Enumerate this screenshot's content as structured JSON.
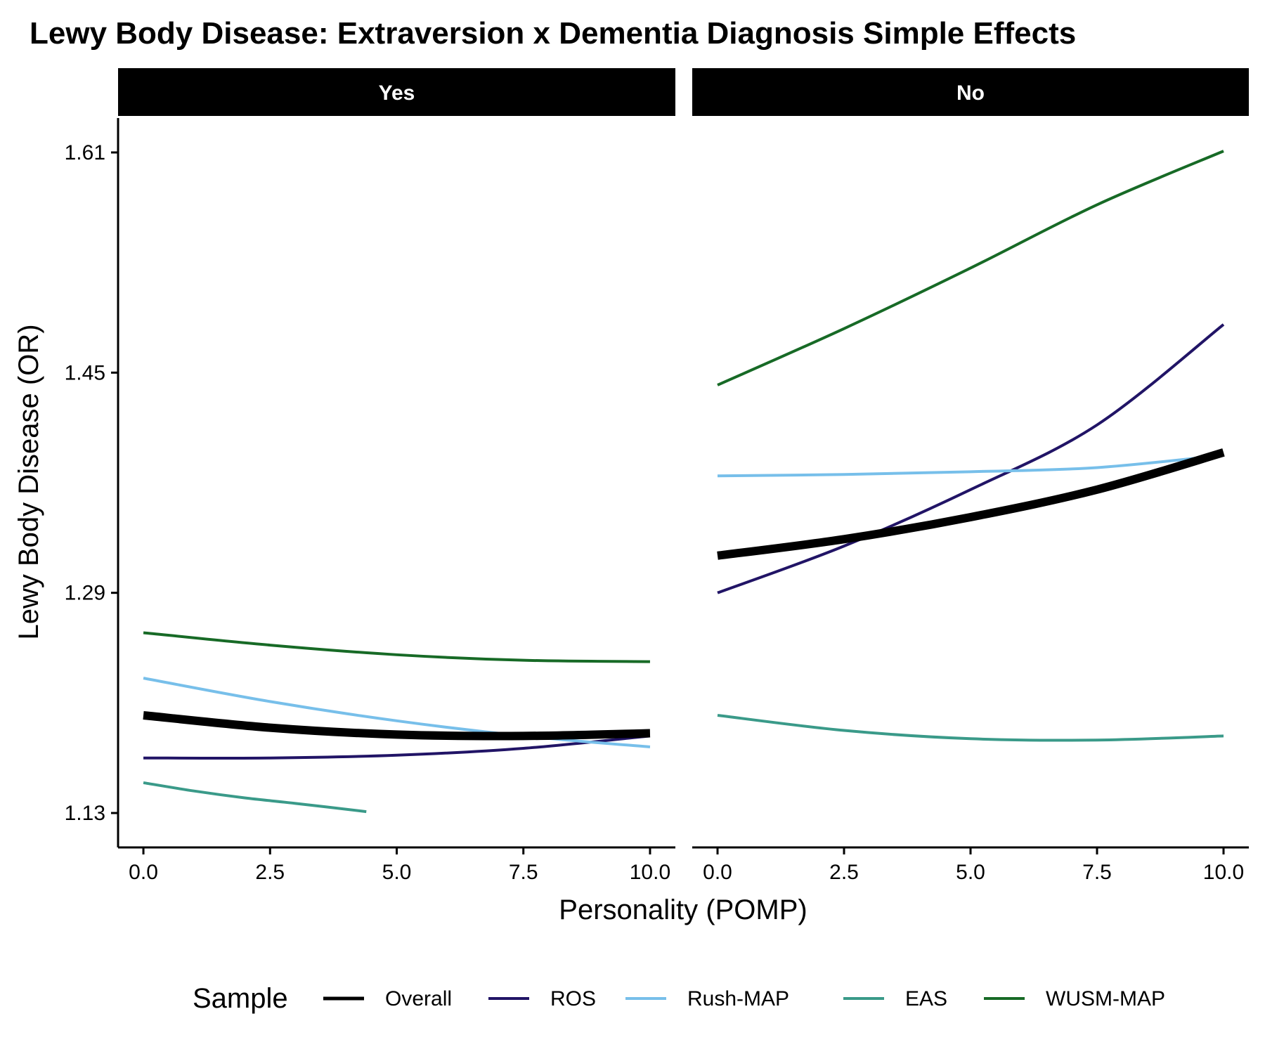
{
  "chart_data": {
    "type": "line",
    "title": "Lewy Body Disease: Extraversion x Dementia Diagnosis Simple Effects",
    "xlabel": "Personality (POMP)",
    "ylabel": "Lewy Body Disease (OR)",
    "x_ticks": [
      "0.0",
      "2.5",
      "5.0",
      "7.5",
      "10.0"
    ],
    "y_ticks": [
      "1.13",
      "1.29",
      "1.45",
      "1.61"
    ],
    "xlim": [
      -0.5,
      10.5
    ],
    "ylim": [
      1.105,
      1.635
    ],
    "grid": false,
    "legend": {
      "title": "Sample",
      "position": "bottom"
    },
    "facets": [
      "Yes",
      "No"
    ],
    "series": [
      {
        "name": "Overall",
        "color": "#000000",
        "width": 12,
        "facet_values": {
          "Yes": {
            "x": [
              0,
              2.5,
              5,
              7.5,
              10
            ],
            "y": [
              1.201,
              1.192,
              1.187,
              1.186,
              1.188
            ]
          },
          "No": {
            "x": [
              0,
              2.5,
              5,
              7.5,
              10
            ],
            "y": [
              1.317,
              1.329,
              1.345,
              1.365,
              1.392
            ]
          }
        }
      },
      {
        "name": "ROS",
        "color": "#211466",
        "width": 4,
        "facet_values": {
          "Yes": {
            "x": [
              0,
              2.5,
              5,
              7.5,
              10
            ],
            "y": [
              1.17,
              1.17,
              1.172,
              1.177,
              1.186
            ]
          },
          "No": {
            "x": [
              0,
              2.5,
              5,
              7.5,
              10
            ],
            "y": [
              1.29,
              1.324,
              1.365,
              1.412,
              1.485
            ]
          }
        }
      },
      {
        "name": "Rush-MAP",
        "color": "#77bfea",
        "width": 4,
        "facet_values": {
          "Yes": {
            "x": [
              0,
              2.5,
              5,
              7.5,
              10
            ],
            "y": [
              1.228,
              1.211,
              1.197,
              1.186,
              1.178
            ]
          },
          "No": {
            "x": [
              0,
              2.5,
              5,
              7.5,
              10
            ],
            "y": [
              1.375,
              1.376,
              1.378,
              1.381,
              1.39
            ]
          }
        }
      },
      {
        "name": "EAS",
        "color": "#3a9a89",
        "width": 4,
        "facet_values": {
          "Yes": {
            "x": [
              0,
              1,
              2,
              3,
              4.4
            ],
            "y": [
              1.152,
              1.146,
              1.141,
              1.137,
              1.131
            ]
          },
          "No": {
            "x": [
              0,
              2.5,
              5,
              7.5,
              10
            ],
            "y": [
              1.201,
              1.19,
              1.184,
              1.183,
              1.186
            ]
          }
        }
      },
      {
        "name": "WUSM-MAP",
        "color": "#176a26",
        "width": 4,
        "facet_values": {
          "Yes": {
            "x": [
              0,
              2.5,
              5,
              7.5,
              10
            ],
            "y": [
              1.261,
              1.252,
              1.245,
              1.241,
              1.24
            ]
          },
          "No": {
            "x": [
              0,
              2.5,
              5,
              7.5,
              10
            ],
            "y": [
              1.441,
              1.482,
              1.526,
              1.572,
              1.611
            ]
          }
        }
      }
    ]
  }
}
